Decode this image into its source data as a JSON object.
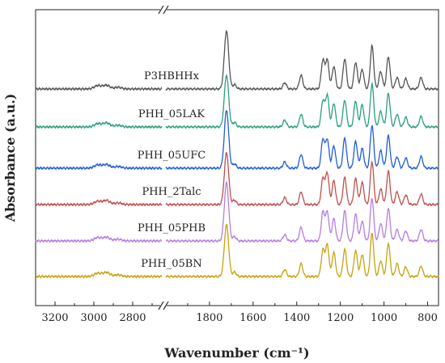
{
  "chart_data": {
    "type": "line",
    "title": "",
    "xlabel": "Wavenumber (cm⁻¹)",
    "ylabel": "Absorbance (a.u.)",
    "x_ranges": [
      [
        3300,
        2650
      ],
      [
        2000,
        750
      ]
    ],
    "x_reversed": true,
    "axis_break": true,
    "y_ticks_shown": false,
    "grid": false,
    "x_ticks": [
      "3200",
      "3000",
      "2800",
      "1800",
      "1600",
      "1400",
      "1200",
      "1000",
      "800"
    ],
    "x_tick_values": [
      3200,
      3000,
      2800,
      1800,
      1600,
      1400,
      1200,
      1000,
      800
    ],
    "series": [
      {
        "name": "P3HBHHx",
        "color": "#555555",
        "offset": 5
      },
      {
        "name": "PHH_05LAK",
        "color": "#2aa07f",
        "offset": 4
      },
      {
        "name": "PHH_05UFC",
        "color": "#1f5fd6",
        "offset": 3
      },
      {
        "name": "PHH_2Talc",
        "color": "#c0504d",
        "offset": 2
      },
      {
        "name": "PHH_05PHB",
        "color": "#b57ee0",
        "offset": 1
      },
      {
        "name": "PHH_05BN",
        "color": "#c9a20f",
        "offset": 0
      }
    ],
    "peaks": [
      {
        "x": 2980,
        "h": 0.06
      },
      {
        "x": 2935,
        "h": 0.07
      },
      {
        "x": 2875,
        "h": 0.03
      },
      {
        "x": 1722,
        "h": 1.0
      },
      {
        "x": 1685,
        "h": 0.08
      },
      {
        "x": 1455,
        "h": 0.12
      },
      {
        "x": 1380,
        "h": 0.24
      },
      {
        "x": 1280,
        "h": 0.5
      },
      {
        "x": 1260,
        "h": 0.55
      },
      {
        "x": 1230,
        "h": 0.42
      },
      {
        "x": 1180,
        "h": 0.52
      },
      {
        "x": 1130,
        "h": 0.48
      },
      {
        "x": 1100,
        "h": 0.38
      },
      {
        "x": 1055,
        "h": 0.78
      },
      {
        "x": 1015,
        "h": 0.3
      },
      {
        "x": 980,
        "h": 0.6
      },
      {
        "x": 940,
        "h": 0.22
      },
      {
        "x": 900,
        "h": 0.18
      },
      {
        "x": 830,
        "h": 0.2
      }
    ]
  }
}
